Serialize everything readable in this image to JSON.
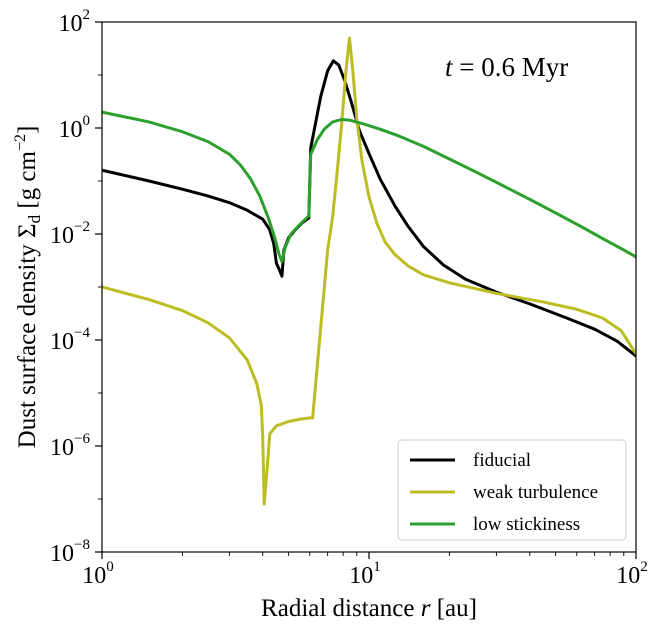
{
  "chart_data": {
    "type": "line",
    "xscale": "log",
    "yscale": "log",
    "xlim": [
      1,
      100
    ],
    "ylim": [
      1e-08,
      100
    ],
    "xlabel": "Radial distance r [au]",
    "xlabel_prefix": "Radial distance",
    "xlabel_var": "r",
    "xlabel_suffix": "[au]",
    "ylabel": "Dust surface density Σd [g cm−2]",
    "ylabel_prefix": "Dust surface density Σ",
    "ylabel_sub": "d",
    "ylabel_unit": "[g cm",
    "ylabel_unit_exp": "−2",
    "ylabel_close": "]",
    "annotation": "t = 0.6 Myr",
    "annotation_var": "t",
    "annotation_rest": " = 0.6 Myr",
    "legend_position": "lower-right",
    "x_ticks": [
      {
        "value": 1,
        "base": "10",
        "exp": "0"
      },
      {
        "value": 10,
        "base": "10",
        "exp": "1"
      },
      {
        "value": 100,
        "base": "10",
        "exp": "2"
      }
    ],
    "y_ticks": [
      {
        "value": 1e-08,
        "base": "10",
        "exp": "−8"
      },
      {
        "value": 1e-06,
        "base": "10",
        "exp": "−6"
      },
      {
        "value": 0.0001,
        "base": "10",
        "exp": "−4"
      },
      {
        "value": 0.01,
        "base": "10",
        "exp": "−2"
      },
      {
        "value": 1,
        "base": "10",
        "exp": "0"
      },
      {
        "value": 100,
        "base": "10",
        "exp": "2"
      }
    ],
    "series": [
      {
        "name": "fiducial",
        "color": "#000000",
        "points": [
          [
            1.0,
            0.16
          ],
          [
            1.5,
            0.1
          ],
          [
            2.0,
            0.07
          ],
          [
            2.5,
            0.052
          ],
          [
            3.0,
            0.039
          ],
          [
            3.5,
            0.028
          ],
          [
            4.0,
            0.019
          ],
          [
            4.25,
            0.012
          ],
          [
            4.4,
            0.0065
          ],
          [
            4.5,
            0.0028
          ],
          [
            4.6,
            0.0022
          ],
          [
            4.72,
            0.0016
          ],
          [
            4.8,
            0.005
          ],
          [
            5.0,
            0.0085
          ],
          [
            5.3,
            0.012
          ],
          [
            5.6,
            0.016
          ],
          [
            5.95,
            0.02
          ],
          [
            6.05,
            0.42
          ],
          [
            6.3,
            1.2
          ],
          [
            6.6,
            4.0
          ],
          [
            7.0,
            12.0
          ],
          [
            7.35,
            18.5
          ],
          [
            7.7,
            15.5
          ],
          [
            8.1,
            8.0
          ],
          [
            8.6,
            3.0
          ],
          [
            9.2,
            0.9
          ],
          [
            10.0,
            0.33
          ],
          [
            11.0,
            0.11
          ],
          [
            12.5,
            0.034
          ],
          [
            14.0,
            0.014
          ],
          [
            16.0,
            0.0058
          ],
          [
            19.0,
            0.0026
          ],
          [
            23.0,
            0.0014
          ],
          [
            30.0,
            0.0008
          ],
          [
            40.0,
            0.00048
          ],
          [
            55.0,
            0.00026
          ],
          [
            70.0,
            0.00016
          ],
          [
            85.0,
            9.5e-05
          ],
          [
            100.0,
            5e-05
          ]
        ]
      },
      {
        "name": "weak turbulence",
        "color": "#bcbd22",
        "points": [
          [
            1.0,
            0.001
          ],
          [
            1.5,
            0.00058
          ],
          [
            2.0,
            0.00036
          ],
          [
            2.5,
            0.00021
          ],
          [
            3.0,
            0.00011
          ],
          [
            3.5,
            4.2e-05
          ],
          [
            3.8,
            1.5e-05
          ],
          [
            3.95,
            5.8e-06
          ],
          [
            4.0,
            1.5e-06
          ],
          [
            4.05,
            8e-08
          ],
          [
            4.15,
            3.5e-07
          ],
          [
            4.25,
            1.7e-06
          ],
          [
            4.5,
            2.4e-06
          ],
          [
            5.0,
            2.9e-06
          ],
          [
            5.5,
            3.2e-06
          ],
          [
            6.0,
            3.4e-06
          ],
          [
            6.15,
            3.4e-06
          ],
          [
            6.6,
            0.00018
          ],
          [
            7.0,
            0.005
          ],
          [
            7.3,
            0.02
          ],
          [
            7.6,
            0.15
          ],
          [
            7.9,
            1.2
          ],
          [
            8.2,
            12.0
          ],
          [
            8.45,
            50.0
          ],
          [
            8.7,
            12.0
          ],
          [
            9.0,
            1.5
          ],
          [
            9.4,
            0.25
          ],
          [
            10.0,
            0.05
          ],
          [
            10.7,
            0.016
          ],
          [
            11.5,
            0.007
          ],
          [
            12.5,
            0.0041
          ],
          [
            14.0,
            0.0025
          ],
          [
            16.0,
            0.0017
          ],
          [
            20.0,
            0.0012
          ],
          [
            30.0,
            0.00076
          ],
          [
            45.0,
            0.00052
          ],
          [
            60.0,
            0.00038
          ],
          [
            75.0,
            0.00026
          ],
          [
            88.0,
            0.00015
          ],
          [
            100.0,
            5.5e-05
          ]
        ]
      },
      {
        "name": "low stickiness",
        "color": "#2ca02c",
        "points": [
          [
            1.0,
            2.0
          ],
          [
            1.5,
            1.3
          ],
          [
            2.0,
            0.85
          ],
          [
            2.5,
            0.55
          ],
          [
            3.0,
            0.32
          ],
          [
            3.3,
            0.2
          ],
          [
            3.6,
            0.11
          ],
          [
            3.9,
            0.052
          ],
          [
            4.2,
            0.02
          ],
          [
            4.45,
            0.008
          ],
          [
            4.6,
            0.0042
          ],
          [
            4.72,
            0.003
          ],
          [
            4.85,
            0.0055
          ],
          [
            5.1,
            0.01
          ],
          [
            5.5,
            0.015
          ],
          [
            5.95,
            0.022
          ],
          [
            6.05,
            0.32
          ],
          [
            6.4,
            0.6
          ],
          [
            6.8,
            0.95
          ],
          [
            7.3,
            1.3
          ],
          [
            7.9,
            1.45
          ],
          [
            8.5,
            1.4
          ],
          [
            9.5,
            1.2
          ],
          [
            11.0,
            0.95
          ],
          [
            13.0,
            0.7
          ],
          [
            16.0,
            0.45
          ],
          [
            20.0,
            0.26
          ],
          [
            25.0,
            0.15
          ],
          [
            32.0,
            0.08
          ],
          [
            40.0,
            0.045
          ],
          [
            50.0,
            0.025
          ],
          [
            62.0,
            0.014
          ],
          [
            75.0,
            0.0082
          ],
          [
            88.0,
            0.0053
          ],
          [
            100.0,
            0.0037
          ]
        ]
      }
    ]
  }
}
